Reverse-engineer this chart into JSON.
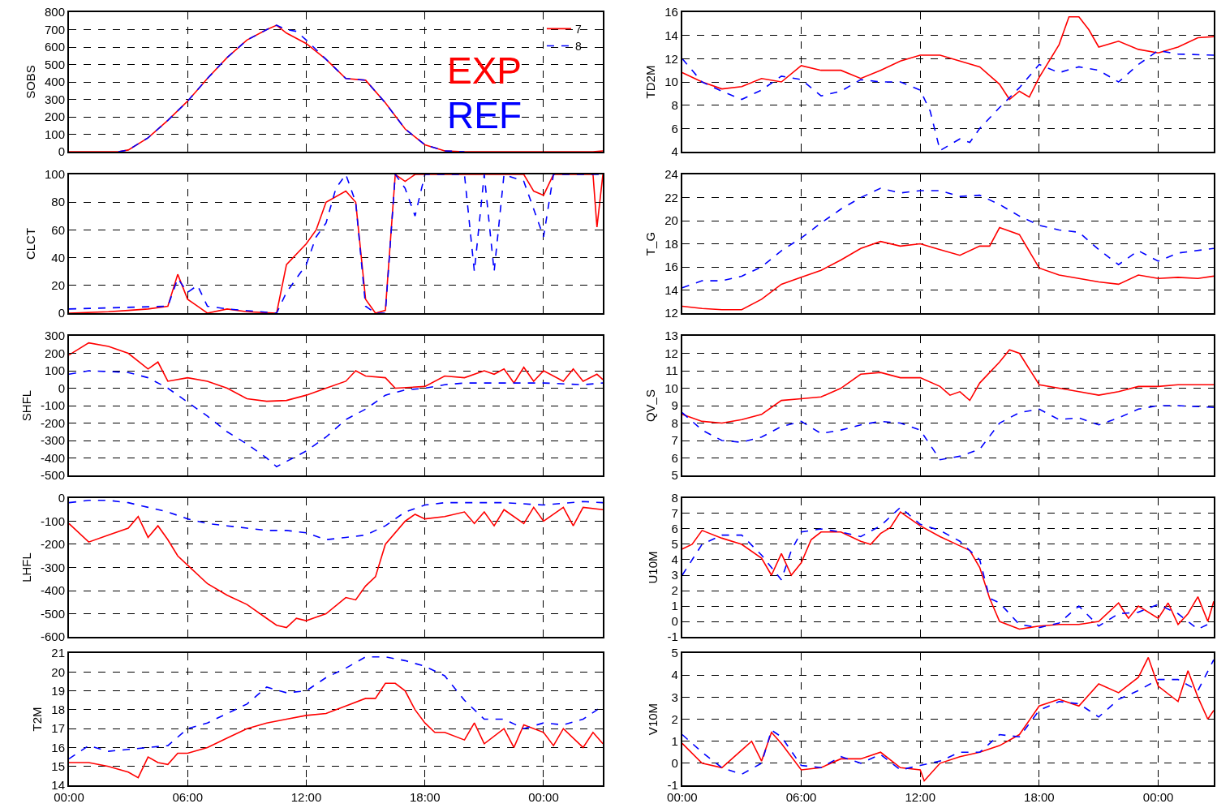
{
  "chart_data": [
    {
      "type": "line",
      "ylabel": "SOBS",
      "xlim": [
        0,
        27
      ],
      "ylim": [
        0,
        800
      ],
      "yticks": [
        0,
        100,
        200,
        300,
        400,
        500,
        600,
        700,
        800
      ],
      "xticks": [
        {
          "value": 0,
          "label": null
        },
        {
          "value": 6,
          "label": null
        },
        {
          "value": 12,
          "label": null
        },
        {
          "value": 18,
          "label": null
        },
        {
          "value": 24,
          "label": null
        }
      ],
      "grid": true,
      "tick_labels": "y",
      "legend": "top right",
      "annotations": [
        "EXP",
        "REF"
      ],
      "series": [
        {
          "name": "7",
          "color": "#ff0000",
          "line_style": "solid",
          "x": [
            0,
            2.5,
            3,
            4,
            5,
            6,
            7,
            8,
            9,
            10,
            10.5,
            11,
            12,
            13,
            14,
            15,
            16,
            17,
            18,
            19,
            20,
            21,
            22,
            23,
            24,
            25,
            26,
            26.5,
            27
          ],
          "values": [
            0,
            0,
            10,
            80,
            180,
            290,
            420,
            540,
            640,
            700,
            725,
            680,
            620,
            530,
            420,
            410,
            280,
            130,
            40,
            5,
            0,
            0,
            0,
            0,
            0,
            0,
            0,
            0,
            5
          ]
        },
        {
          "name": "8",
          "color": "#0000ff",
          "line_style": "dashed",
          "x": [
            2.5,
            3,
            4,
            5,
            6,
            7,
            8,
            9,
            10,
            10.5,
            11,
            11.5,
            12,
            13,
            14,
            15,
            16,
            17,
            18,
            19,
            20
          ],
          "values": [
            0,
            10,
            80,
            180,
            290,
            420,
            540,
            640,
            700,
            725,
            700,
            690,
            640,
            530,
            420,
            410,
            280,
            130,
            40,
            5,
            0
          ]
        }
      ]
    },
    {
      "type": "line",
      "ylabel": "TD2M",
      "xlim": [
        0,
        26.8
      ],
      "ylim": [
        4,
        16
      ],
      "yticks": [
        4,
        6,
        8,
        10,
        12,
        14,
        16
      ],
      "xticks": [
        {
          "value": 0,
          "label": null
        },
        {
          "value": 6,
          "label": null
        },
        {
          "value": 12,
          "label": null
        },
        {
          "value": 18,
          "label": null
        },
        {
          "value": 24,
          "label": null
        }
      ],
      "grid": true,
      "tick_labels": "y",
      "series": [
        {
          "color": "#ff0000",
          "line_style": "solid",
          "x": [
            0,
            1,
            2,
            3,
            4,
            5,
            6,
            7,
            8,
            9,
            10,
            11,
            12,
            13,
            14,
            15,
            16,
            16.5,
            17,
            17.5,
            18,
            19,
            19.5,
            20,
            20.5,
            21,
            22,
            23,
            24,
            25,
            26,
            26.8
          ],
          "values": [
            10.8,
            10.0,
            9.4,
            9.6,
            10.3,
            10.0,
            11.4,
            11.0,
            11.0,
            10.3,
            11.0,
            11.8,
            12.3,
            12.3,
            11.8,
            11.3,
            9.8,
            8.5,
            9.2,
            8.7,
            10.4,
            13.2,
            15.6,
            15.6,
            14.5,
            13.0,
            13.5,
            12.8,
            12.5,
            13.0,
            13.8,
            13.9
          ]
        },
        {
          "color": "#0000ff",
          "line_style": "dashed",
          "x": [
            0,
            1,
            2,
            3,
            4,
            5,
            6,
            7,
            8,
            9,
            10,
            11,
            12,
            12.5,
            13,
            14,
            14.5,
            15,
            16,
            17,
            18,
            19,
            20,
            21,
            22,
            23,
            24,
            25,
            26.8
          ],
          "values": [
            12.0,
            10.0,
            9.2,
            8.5,
            9.3,
            10.5,
            10.2,
            8.8,
            9.2,
            10.2,
            10.0,
            10.0,
            9.3,
            7.5,
            4.1,
            5.1,
            4.8,
            6.0,
            7.8,
            9.5,
            11.5,
            10.8,
            11.3,
            11.0,
            10.0,
            11.5,
            12.7,
            12.4,
            12.3
          ]
        }
      ]
    },
    {
      "type": "line",
      "ylabel": "CLCT",
      "xlim": [
        0,
        27
      ],
      "ylim": [
        0,
        100
      ],
      "yticks": [
        0,
        20,
        40,
        60,
        80,
        100
      ],
      "xticks": [
        {
          "value": 0,
          "label": null
        },
        {
          "value": 6,
          "label": null
        },
        {
          "value": 12,
          "label": null
        },
        {
          "value": 18,
          "label": null
        },
        {
          "value": 24,
          "label": null
        }
      ],
      "grid": true,
      "tick_labels": "y",
      "series": [
        {
          "color": "#ff0000",
          "line_style": "solid",
          "x": [
            0,
            2,
            3,
            4,
            5,
            5.5,
            6,
            6.5,
            7,
            8,
            9,
            10.5,
            11,
            12,
            12.5,
            13,
            14,
            14.5,
            15,
            15.5,
            16,
            16.5,
            17,
            17.5,
            18,
            20,
            22,
            23,
            23.5,
            24,
            24.5,
            26.5,
            26.7,
            27
          ],
          "values": [
            0,
            1,
            2,
            3,
            5,
            28,
            10,
            5,
            0,
            3,
            1,
            0,
            35,
            50,
            60,
            80,
            88,
            80,
            10,
            0,
            2,
            100,
            95,
            100,
            100,
            100,
            100,
            100,
            88,
            85,
            100,
            100,
            62,
            100
          ]
        },
        {
          "color": "#0000ff",
          "line_style": "dashed",
          "x": [
            0,
            5,
            5.5,
            6,
            6.5,
            7,
            8,
            10.5,
            11,
            12,
            12.5,
            13,
            13.5,
            14,
            14.5,
            15,
            15.5,
            16,
            16.5,
            17,
            17.5,
            18,
            20,
            20.5,
            21,
            21.5,
            22,
            23,
            24,
            24.5,
            27
          ],
          "values": [
            3,
            5,
            25,
            15,
            20,
            5,
            3,
            0,
            15,
            35,
            55,
            65,
            90,
            100,
            80,
            5,
            0,
            0,
            100,
            90,
            70,
            100,
            100,
            30,
            100,
            30,
            100,
            95,
            55,
            100,
            100
          ]
        }
      ]
    },
    {
      "type": "line",
      "ylabel": "T_G",
      "xlim": [
        0,
        26.8
      ],
      "ylim": [
        12,
        24
      ],
      "yticks": [
        12,
        14,
        16,
        18,
        20,
        22,
        24
      ],
      "xticks": [
        {
          "value": 0,
          "label": null
        },
        {
          "value": 6,
          "label": null
        },
        {
          "value": 12,
          "label": null
        },
        {
          "value": 18,
          "label": null
        },
        {
          "value": 24,
          "label": null
        }
      ],
      "grid": true,
      "tick_labels": "y",
      "series": [
        {
          "color": "#ff0000",
          "line_style": "solid",
          "x": [
            0,
            1,
            2,
            3,
            4,
            5,
            6,
            7,
            8,
            9,
            10,
            11,
            12,
            13,
            14,
            15,
            15.5,
            16,
            17,
            18,
            19,
            20,
            21,
            22,
            23,
            24,
            25,
            26,
            26.8
          ],
          "values": [
            12.6,
            12.4,
            12.3,
            12.3,
            13.2,
            14.5,
            15.1,
            15.7,
            16.6,
            17.6,
            18.2,
            17.8,
            18.0,
            17.5,
            17.0,
            17.8,
            17.8,
            19.4,
            18.8,
            15.9,
            15.3,
            15.0,
            14.7,
            14.5,
            15.3,
            15.0,
            15.1,
            15.0,
            15.2
          ]
        },
        {
          "color": "#0000ff",
          "line_style": "dashed",
          "x": [
            0,
            1,
            2,
            3,
            4,
            5,
            6,
            7,
            8,
            9,
            10,
            11,
            12,
            13,
            14,
            15,
            16,
            17,
            18,
            19,
            20,
            21,
            22,
            23,
            24,
            25,
            26.8
          ],
          "values": [
            14.2,
            14.8,
            14.8,
            15.2,
            16.0,
            17.4,
            18.5,
            19.8,
            21.0,
            22.0,
            22.8,
            22.4,
            22.6,
            22.6,
            22.1,
            22.2,
            21.4,
            20.4,
            19.6,
            19.2,
            19.0,
            17.5,
            16.2,
            17.4,
            16.5,
            17.2,
            17.6
          ]
        }
      ]
    },
    {
      "type": "line",
      "ylabel": "SHFL",
      "xlim": [
        0,
        27
      ],
      "ylim": [
        -500,
        300
      ],
      "yticks": [
        -500,
        -400,
        -300,
        -200,
        -100,
        0,
        100,
        200,
        300
      ],
      "xticks": [
        {
          "value": 0,
          "label": null
        },
        {
          "value": 6,
          "label": null
        },
        {
          "value": 12,
          "label": null
        },
        {
          "value": 18,
          "label": null
        },
        {
          "value": 24,
          "label": null
        }
      ],
      "grid": true,
      "tick_labels": "y",
      "series": [
        {
          "color": "#ff0000",
          "line_style": "solid",
          "x": [
            0,
            1,
            2,
            3,
            4,
            4.5,
            5,
            6,
            7,
            8,
            9,
            10,
            11,
            12,
            13,
            14,
            14.5,
            15,
            16,
            16.5,
            18,
            19,
            20,
            21,
            21.5,
            22,
            22.5,
            23,
            23.5,
            24,
            25,
            25.5,
            26,
            26.7,
            27
          ],
          "values": [
            190,
            260,
            240,
            200,
            110,
            150,
            40,
            60,
            40,
            0,
            -60,
            -75,
            -70,
            -40,
            0,
            40,
            100,
            70,
            60,
            0,
            10,
            70,
            60,
            100,
            80,
            110,
            30,
            120,
            40,
            100,
            40,
            110,
            40,
            80,
            50
          ]
        },
        {
          "color": "#0000ff",
          "line_style": "dashed",
          "x": [
            0,
            1,
            3,
            4,
            5,
            6,
            7,
            8,
            9,
            10,
            10.5,
            11,
            12,
            13,
            14,
            15,
            16,
            17,
            18,
            19,
            20,
            21,
            22,
            24,
            26,
            27
          ],
          "values": [
            80,
            100,
            90,
            60,
            0,
            -80,
            -160,
            -250,
            -320,
            -400,
            -450,
            -420,
            -360,
            -280,
            -180,
            -120,
            -40,
            -10,
            0,
            20,
            30,
            30,
            30,
            30,
            20,
            30
          ]
        }
      ]
    },
    {
      "type": "line",
      "ylabel": "QV_S",
      "xlim": [
        0,
        26.8
      ],
      "ylim": [
        5,
        13
      ],
      "yticks": [
        5,
        6,
        7,
        8,
        9,
        10,
        11,
        12,
        13
      ],
      "xticks": [
        {
          "value": 0,
          "label": null
        },
        {
          "value": 6,
          "label": null
        },
        {
          "value": 12,
          "label": null
        },
        {
          "value": 18,
          "label": null
        },
        {
          "value": 24,
          "label": null
        }
      ],
      "grid": true,
      "tick_labels": "y",
      "series": [
        {
          "color": "#ff0000",
          "line_style": "solid",
          "x": [
            0,
            1,
            2,
            3,
            4,
            5,
            6,
            7,
            8,
            9,
            10,
            11,
            12,
            13,
            13.5,
            14,
            14.5,
            15,
            16,
            16.5,
            17,
            18,
            19,
            20,
            21,
            22,
            23,
            24,
            25,
            26.8
          ],
          "values": [
            8.5,
            8.1,
            8.0,
            8.2,
            8.5,
            9.3,
            9.4,
            9.5,
            10.0,
            10.8,
            10.9,
            10.6,
            10.6,
            10.1,
            9.6,
            9.8,
            9.3,
            10.3,
            11.5,
            12.2,
            12.0,
            10.2,
            10.0,
            9.8,
            9.6,
            9.8,
            10.1,
            10.1,
            10.2,
            10.2
          ]
        },
        {
          "color": "#0000ff",
          "line_style": "dashed",
          "x": [
            0,
            1,
            2,
            3,
            4,
            5,
            6,
            7,
            8,
            9,
            10,
            11,
            12,
            13,
            14,
            15,
            16,
            17,
            18,
            19,
            20,
            21,
            22,
            23,
            24,
            25,
            26.8
          ],
          "values": [
            8.6,
            7.6,
            7.0,
            6.9,
            7.2,
            7.8,
            8.1,
            7.4,
            7.6,
            7.9,
            8.1,
            8.0,
            7.6,
            5.9,
            6.1,
            6.5,
            8.0,
            8.6,
            8.8,
            8.2,
            8.3,
            7.9,
            8.3,
            8.8,
            9.0,
            9.0,
            8.9
          ]
        }
      ]
    },
    {
      "type": "line",
      "ylabel": "LHFL",
      "xlim": [
        0,
        27
      ],
      "ylim": [
        -600,
        0
      ],
      "yticks": [
        -600,
        -500,
        -400,
        -300,
        -200,
        -100,
        0
      ],
      "xticks": [
        {
          "value": 0,
          "label": null
        },
        {
          "value": 6,
          "label": null
        },
        {
          "value": 12,
          "label": null
        },
        {
          "value": 18,
          "label": null
        },
        {
          "value": 24,
          "label": null
        }
      ],
      "grid": true,
      "tick_labels": "y",
      "series": [
        {
          "color": "#ff0000",
          "line_style": "solid",
          "x": [
            0,
            1,
            2,
            3,
            3.5,
            4,
            4.5,
            5,
            5.5,
            6,
            7,
            8,
            9,
            10,
            10.5,
            11,
            11.5,
            12,
            13,
            14,
            14.5,
            15,
            15.5,
            16,
            17,
            17.5,
            18,
            19,
            20,
            20.5,
            21,
            21.5,
            22,
            23,
            23.5,
            24,
            25,
            25.5,
            26,
            27
          ],
          "values": [
            -110,
            -190,
            -160,
            -130,
            -80,
            -170,
            -120,
            -180,
            -250,
            -290,
            -370,
            -420,
            -460,
            -520,
            -550,
            -560,
            -520,
            -530,
            -500,
            -430,
            -440,
            -380,
            -340,
            -200,
            -100,
            -70,
            -90,
            -80,
            -60,
            -110,
            -60,
            -120,
            -50,
            -110,
            -40,
            -100,
            -40,
            -120,
            -40,
            -50
          ]
        },
        {
          "color": "#0000ff",
          "line_style": "dashed",
          "x": [
            0,
            1,
            2,
            3,
            4,
            5,
            6,
            7,
            8,
            9,
            10,
            11,
            12,
            13,
            14,
            15,
            16,
            17,
            18,
            19,
            20,
            22,
            24,
            26,
            27
          ],
          "values": [
            -20,
            -10,
            -10,
            -20,
            -40,
            -60,
            -90,
            -110,
            -120,
            -130,
            -140,
            -140,
            -150,
            -180,
            -170,
            -160,
            -120,
            -60,
            -30,
            -20,
            -20,
            -20,
            -30,
            -15,
            -20
          ]
        }
      ]
    },
    {
      "type": "line",
      "ylabel": "U10M",
      "xlim": [
        0,
        26.8
      ],
      "ylim": [
        -1,
        8
      ],
      "yticks": [
        -1,
        0,
        1,
        2,
        3,
        4,
        5,
        6,
        7,
        8
      ],
      "xticks": [
        {
          "value": 0,
          "label": null
        },
        {
          "value": 6,
          "label": null
        },
        {
          "value": 12,
          "label": null
        },
        {
          "value": 18,
          "label": null
        },
        {
          "value": 24,
          "label": null
        }
      ],
      "grid": true,
      "tick_labels": "y",
      "series": [
        {
          "color": "#ff0000",
          "line_style": "solid",
          "x": [
            0,
            0.5,
            1,
            2,
            3,
            4,
            4.5,
            5,
            5.5,
            6,
            6.5,
            7,
            8,
            9,
            9.5,
            10,
            10.5,
            11,
            12,
            13,
            14,
            14.5,
            15,
            15.5,
            16,
            17,
            18,
            19,
            20,
            21,
            22,
            22.5,
            23,
            24,
            24.5,
            25,
            25.5,
            26,
            26.5,
            26.8
          ],
          "values": [
            4.7,
            5.0,
            5.9,
            5.4,
            5.0,
            4.1,
            3.0,
            4.4,
            3.0,
            3.8,
            5.3,
            5.8,
            5.8,
            5.2,
            5.0,
            5.7,
            6.1,
            7.1,
            6.2,
            5.5,
            4.9,
            4.6,
            3.5,
            1.5,
            0.0,
            -0.5,
            -0.3,
            -0.2,
            -0.2,
            0.0,
            1.2,
            0.2,
            1.0,
            0.2,
            1.2,
            -0.2,
            0.5,
            1.6,
            0.0,
            1.3
          ]
        },
        {
          "color": "#0000ff",
          "line_style": "dashed",
          "x": [
            0,
            1,
            2,
            3,
            4,
            5,
            5.5,
            6,
            7,
            8,
            9,
            10,
            11,
            12,
            13,
            14,
            15,
            15.5,
            16,
            17,
            18,
            19,
            20,
            21,
            22,
            23,
            24,
            25,
            26,
            26.8
          ],
          "values": [
            3.0,
            5.0,
            5.6,
            5.6,
            4.3,
            2.7,
            4.6,
            5.8,
            6.0,
            5.8,
            5.5,
            6.2,
            7.4,
            6.3,
            5.9,
            5.2,
            4.0,
            1.5,
            1.2,
            -0.2,
            -0.4,
            -0.1,
            1.0,
            -0.3,
            0.5,
            0.6,
            1.1,
            0.5,
            -0.5,
            0.0
          ]
        }
      ]
    },
    {
      "type": "line",
      "ylabel": "T2M",
      "xlim": [
        0,
        27
      ],
      "ylim": [
        14,
        21
      ],
      "yticks": [
        14,
        15,
        16,
        17,
        18,
        19,
        20,
        21
      ],
      "xticks": [
        {
          "value": 0,
          "label": "00:00"
        },
        {
          "value": 6,
          "label": "06:00"
        },
        {
          "value": 12,
          "label": "12:00"
        },
        {
          "value": 18,
          "label": "18:00"
        },
        {
          "value": 24,
          "label": "00:00"
        }
      ],
      "grid": true,
      "series": [
        {
          "color": "#ff0000",
          "line_style": "solid",
          "x": [
            0,
            1,
            2,
            3,
            3.5,
            4,
            4.5,
            5,
            5.5,
            6,
            7,
            8,
            9,
            10,
            11,
            12,
            13,
            14,
            15,
            15.5,
            16,
            16.5,
            17,
            17.5,
            18,
            18.5,
            19,
            20,
            20.5,
            21,
            22,
            22.5,
            23,
            24,
            24.5,
            25,
            26,
            26.5,
            27
          ],
          "values": [
            15.2,
            15.2,
            15.0,
            14.7,
            14.4,
            15.5,
            15.2,
            15.1,
            15.7,
            15.7,
            16.0,
            16.5,
            17.0,
            17.3,
            17.5,
            17.7,
            17.8,
            18.2,
            18.6,
            18.6,
            19.4,
            19.4,
            19.0,
            18.0,
            17.3,
            16.8,
            16.8,
            16.4,
            17.3,
            16.2,
            17.0,
            16.0,
            17.2,
            16.8,
            16.1,
            17.0,
            16.0,
            16.8,
            16.2
          ]
        },
        {
          "color": "#0000ff",
          "line_style": "dashed",
          "x": [
            0,
            1,
            2,
            3,
            4,
            5,
            6,
            7,
            8,
            9,
            10,
            11,
            12,
            13,
            14,
            15,
            16,
            17,
            18,
            19,
            20,
            21,
            22,
            23,
            24,
            25,
            26,
            27
          ],
          "values": [
            15.4,
            16.1,
            15.8,
            15.9,
            16.0,
            16.1,
            17.0,
            17.3,
            17.8,
            18.3,
            19.2,
            18.9,
            19.0,
            19.7,
            20.2,
            20.8,
            20.8,
            20.6,
            20.3,
            19.8,
            18.5,
            17.5,
            17.5,
            17.0,
            17.3,
            17.2,
            17.5,
            18.2
          ]
        }
      ]
    },
    {
      "type": "line",
      "ylabel": "V10M",
      "xlim": [
        0,
        26.8
      ],
      "ylim": [
        -1,
        5
      ],
      "yticks": [
        -1,
        0,
        1,
        2,
        3,
        4,
        5
      ],
      "xticks": [
        {
          "value": 0,
          "label": "00:00"
        },
        {
          "value": 6,
          "label": "06:00"
        },
        {
          "value": 12,
          "label": "12:00"
        },
        {
          "value": 18,
          "label": "18:00"
        },
        {
          "value": 24,
          "label": "00:00"
        }
      ],
      "grid": true,
      "series": [
        {
          "color": "#ff0000",
          "line_style": "solid",
          "x": [
            0,
            1,
            2,
            3,
            3.5,
            4,
            4.5,
            5,
            6,
            7,
            8,
            9,
            10,
            11,
            12,
            12.2,
            13,
            14,
            15,
            16,
            17,
            18,
            19,
            20,
            21,
            22,
            23,
            23.5,
            24,
            25,
            25.5,
            26,
            26.5,
            26.8
          ],
          "values": [
            0.9,
            0.0,
            -0.2,
            0.6,
            1.0,
            0.1,
            1.4,
            0.9,
            -0.3,
            -0.2,
            0.2,
            0.2,
            0.5,
            -0.2,
            -0.3,
            -0.8,
            0.0,
            0.3,
            0.5,
            0.8,
            1.3,
            2.6,
            2.9,
            2.6,
            3.6,
            3.2,
            3.9,
            4.8,
            3.5,
            2.8,
            4.2,
            3.0,
            2.0,
            2.4
          ]
        },
        {
          "color": "#0000ff",
          "line_style": "dashed",
          "x": [
            0,
            1,
            2,
            3,
            4,
            4.5,
            5,
            6,
            7,
            8,
            9,
            10,
            11,
            12,
            13,
            14,
            15,
            16,
            17,
            18,
            19,
            20,
            21,
            22,
            23,
            24,
            25,
            26,
            26.8
          ],
          "values": [
            1.3,
            0.5,
            -0.2,
            -0.5,
            0.0,
            1.5,
            1.2,
            -0.1,
            -0.2,
            0.3,
            0.0,
            0.4,
            -0.3,
            -0.1,
            0.1,
            0.5,
            0.5,
            1.3,
            1.2,
            2.4,
            2.8,
            2.7,
            2.1,
            2.9,
            3.3,
            3.8,
            3.8,
            3.3,
            4.7
          ]
        }
      ]
    }
  ]
}
